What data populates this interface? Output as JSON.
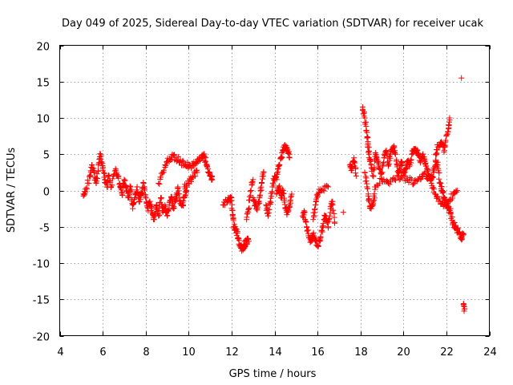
{
  "chart_data": {
    "type": "scatter",
    "title": "Day 049 of 2025, Sidereal Day-to-day VTEC variation (SDTVAR) for receiver ucak",
    "xlabel": "GPS time / hours",
    "ylabel": "SDTVAR / TECUs",
    "xlim": [
      4,
      24
    ],
    "ylim": [
      -20,
      20
    ],
    "xticks": [
      "4",
      "6",
      "8",
      "10",
      "12",
      "14",
      "16",
      "18",
      "20",
      "22",
      "24"
    ],
    "yticks": [
      "20",
      "15",
      "10",
      "5",
      "0",
      "-5",
      "-10",
      "-15",
      "-20"
    ],
    "grid": true,
    "marker": "+",
    "color": "#ff0000",
    "series": [
      {
        "name": "SDTVAR",
        "trace_points": [
          [
            5.1,
            -0.5
          ],
          [
            5.2,
            -0.2
          ],
          [
            5.4,
            2.0
          ],
          [
            5.5,
            3.5
          ],
          [
            5.6,
            2.5
          ],
          [
            5.7,
            1.0
          ],
          [
            5.8,
            3.5
          ],
          [
            5.9,
            5.0
          ],
          [
            6.0,
            3.0
          ],
          [
            6.1,
            1.5
          ],
          [
            6.2,
            0.5
          ],
          [
            6.3,
            2.0
          ],
          [
            6.4,
            0.5
          ],
          [
            6.6,
            3.0
          ],
          [
            6.7,
            2.0
          ],
          [
            6.8,
            0.5
          ],
          [
            6.9,
            -0.5
          ],
          [
            7.0,
            1.5
          ],
          [
            7.1,
            0.5
          ],
          [
            7.2,
            -1.0
          ],
          [
            7.3,
            0.5
          ],
          [
            7.4,
            -2.5
          ],
          [
            7.5,
            -1.0
          ],
          [
            7.6,
            0.5
          ],
          [
            7.7,
            -1.5
          ],
          [
            7.8,
            -0.5
          ],
          [
            7.9,
            1.0
          ],
          [
            8.0,
            -1.0
          ],
          [
            8.1,
            -2.5
          ],
          [
            8.2,
            -1.5
          ],
          [
            8.3,
            -3.0
          ],
          [
            8.4,
            -4.0
          ],
          [
            8.5,
            -2.0
          ],
          [
            8.6,
            -3.5
          ],
          [
            8.7,
            -1.0
          ],
          [
            8.8,
            -3.0
          ],
          [
            8.9,
            -2.0
          ],
          [
            9.0,
            -3.5
          ],
          [
            9.1,
            -2.0
          ],
          [
            9.2,
            -1.0
          ],
          [
            9.3,
            -2.5
          ],
          [
            9.4,
            -1.0
          ],
          [
            9.5,
            0.5
          ],
          [
            9.6,
            -1.5
          ],
          [
            9.7,
            -2.0
          ],
          [
            9.8,
            -1.0
          ],
          [
            9.9,
            0.0
          ],
          [
            8.6,
            1.0
          ],
          [
            8.8,
            2.5
          ],
          [
            9.0,
            4.0
          ],
          [
            9.2,
            4.7
          ],
          [
            9.4,
            4.5
          ],
          [
            9.6,
            4.0
          ],
          [
            9.8,
            3.5
          ],
          [
            10.0,
            3.5
          ],
          [
            10.2,
            3.5
          ],
          [
            10.4,
            3.8
          ],
          [
            10.6,
            4.5
          ],
          [
            10.7,
            5.0
          ],
          [
            10.8,
            4.0
          ],
          [
            10.9,
            3.0
          ],
          [
            11.0,
            2.0
          ],
          [
            11.1,
            1.5
          ],
          [
            9.8,
            0.5
          ],
          [
            10.0,
            1.0
          ],
          [
            10.2,
            2.0
          ],
          [
            10.4,
            2.5
          ],
          [
            11.6,
            -2.0
          ],
          [
            11.8,
            -1.5
          ],
          [
            11.9,
            -1.0
          ],
          [
            12.0,
            -1.0
          ],
          [
            12.05,
            -3.5
          ],
          [
            12.1,
            -5.0
          ],
          [
            12.2,
            -5.5
          ],
          [
            12.3,
            -6.5
          ],
          [
            12.4,
            -7.5
          ],
          [
            12.5,
            -8.0
          ],
          [
            12.6,
            -7.5
          ],
          [
            12.7,
            -7.0
          ],
          [
            12.8,
            -7.0
          ],
          [
            12.7,
            -4.0
          ],
          [
            12.8,
            -2.5
          ],
          [
            12.9,
            0.0
          ],
          [
            13.0,
            1.5
          ],
          [
            13.0,
            -1.0
          ],
          [
            13.1,
            -2.0
          ],
          [
            13.2,
            -2.5
          ],
          [
            13.3,
            -1.0
          ],
          [
            13.4,
            1.0
          ],
          [
            13.5,
            2.5
          ],
          [
            13.6,
            -2.0
          ],
          [
            13.7,
            -3.5
          ],
          [
            13.8,
            -1.5
          ],
          [
            13.9,
            0.5
          ],
          [
            14.0,
            2.0
          ],
          [
            14.1,
            1.5
          ],
          [
            14.2,
            3.5
          ],
          [
            14.3,
            4.5
          ],
          [
            14.4,
            5.5
          ],
          [
            14.5,
            6.0
          ],
          [
            14.6,
            5.5
          ],
          [
            14.7,
            4.5
          ],
          [
            14.1,
            -0.5
          ],
          [
            14.2,
            0.5
          ],
          [
            14.3,
            -1.0
          ],
          [
            14.4,
            0.0
          ],
          [
            14.5,
            -2.5
          ],
          [
            14.6,
            -3.0
          ],
          [
            14.7,
            -2.0
          ],
          [
            14.8,
            -0.5
          ],
          [
            15.3,
            -3.5
          ],
          [
            15.4,
            -3.0
          ],
          [
            15.5,
            -5.0
          ],
          [
            15.6,
            -6.5
          ],
          [
            15.7,
            -7.0
          ],
          [
            15.8,
            -6.0
          ],
          [
            15.9,
            -7.0
          ],
          [
            16.0,
            -7.5
          ],
          [
            16.1,
            -7.0
          ],
          [
            16.2,
            -5.5
          ],
          [
            16.3,
            -4.0
          ],
          [
            16.4,
            -3.5
          ],
          [
            16.5,
            -5.0
          ],
          [
            16.6,
            -2.5
          ],
          [
            16.7,
            -1.5
          ],
          [
            16.8,
            -4.5
          ],
          [
            15.8,
            -4.0
          ],
          [
            15.9,
            -2.0
          ],
          [
            16.0,
            -0.5
          ],
          [
            16.2,
            0.0
          ],
          [
            16.5,
            0.5
          ],
          [
            17.2,
            -3.0
          ],
          [
            17.5,
            3.5
          ],
          [
            17.6,
            3.0
          ],
          [
            17.7,
            4.5
          ],
          [
            17.8,
            2.0
          ],
          [
            18.1,
            11.5
          ],
          [
            18.2,
            10.0
          ],
          [
            18.3,
            8.0
          ],
          [
            18.35,
            6.5
          ],
          [
            18.4,
            5.0
          ],
          [
            18.5,
            3.5
          ],
          [
            18.6,
            2.0
          ],
          [
            18.7,
            5.0
          ],
          [
            18.8,
            4.0
          ],
          [
            18.9,
            3.0
          ],
          [
            19.0,
            2.5
          ],
          [
            19.1,
            4.5
          ],
          [
            19.2,
            5.5
          ],
          [
            19.3,
            3.5
          ],
          [
            19.4,
            5.0
          ],
          [
            19.5,
            6.0
          ],
          [
            19.6,
            5.5
          ],
          [
            19.7,
            3.5
          ],
          [
            19.8,
            2.5
          ],
          [
            19.9,
            4.0
          ],
          [
            20.0,
            2.5
          ],
          [
            20.1,
            3.0
          ],
          [
            20.2,
            4.0
          ],
          [
            20.3,
            3.5
          ],
          [
            20.4,
            5.0
          ],
          [
            20.5,
            5.5
          ],
          [
            20.6,
            5.5
          ],
          [
            20.7,
            5.0
          ],
          [
            20.8,
            4.0
          ],
          [
            20.9,
            5.0
          ],
          [
            21.0,
            4.0
          ],
          [
            21.1,
            3.0
          ],
          [
            21.2,
            2.0
          ],
          [
            21.3,
            1.5
          ],
          [
            21.4,
            2.5
          ],
          [
            21.5,
            4.0
          ],
          [
            21.6,
            3.5
          ],
          [
            21.7,
            1.0
          ],
          [
            21.8,
            0.0
          ],
          [
            21.9,
            -1.0
          ],
          [
            22.0,
            -2.0
          ],
          [
            22.1,
            -2.5
          ],
          [
            22.2,
            -3.0
          ],
          [
            22.3,
            -4.5
          ],
          [
            22.4,
            -5.0
          ],
          [
            22.5,
            -5.5
          ],
          [
            22.6,
            -6.0
          ],
          [
            22.7,
            -6.5
          ],
          [
            22.8,
            -6.0
          ],
          [
            18.2,
            2.5
          ],
          [
            18.3,
            0.5
          ],
          [
            18.4,
            -1.5
          ],
          [
            18.5,
            -2.5
          ],
          [
            18.6,
            -1.5
          ],
          [
            18.7,
            0.5
          ],
          [
            19.0,
            1.5
          ],
          [
            19.3,
            1.0
          ],
          [
            19.6,
            1.5
          ],
          [
            19.9,
            2.0
          ],
          [
            20.2,
            1.5
          ],
          [
            20.5,
            1.0
          ],
          [
            20.8,
            1.5
          ],
          [
            21.0,
            2.5
          ],
          [
            21.3,
            1.0
          ],
          [
            21.5,
            -0.5
          ],
          [
            21.7,
            -1.5
          ],
          [
            21.9,
            -2.0
          ],
          [
            22.1,
            -1.5
          ],
          [
            22.3,
            -0.5
          ],
          [
            22.5,
            0.0
          ],
          [
            21.5,
            5.0
          ],
          [
            21.6,
            6.0
          ],
          [
            21.8,
            6.5
          ],
          [
            21.9,
            5.5
          ],
          [
            22.0,
            7.5
          ],
          [
            22.1,
            8.5
          ],
          [
            22.15,
            10.0
          ],
          [
            22.7,
            15.5
          ],
          [
            22.8,
            -15.7
          ],
          [
            22.85,
            -16.3
          ]
        ]
      }
    ]
  }
}
